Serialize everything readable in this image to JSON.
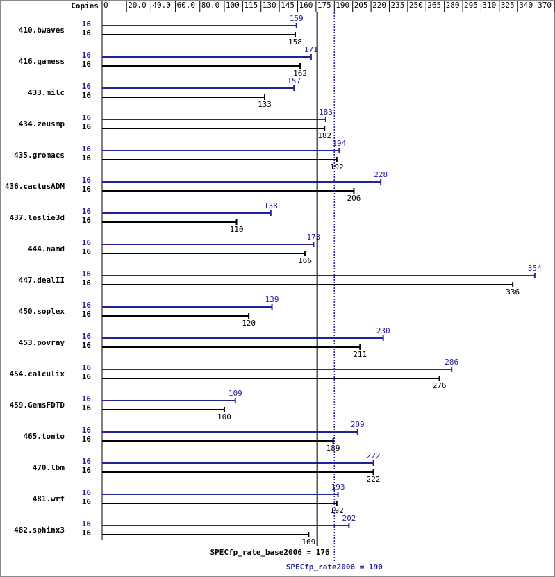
{
  "chart_data": {
    "type": "spec-bar",
    "copies_label": "Copies",
    "categories": [
      "410.bwaves",
      "416.gamess",
      "433.milc",
      "434.zeusmp",
      "435.gromacs",
      "436.cactusADM",
      "437.leslie3d",
      "444.namd",
      "447.dealII",
      "450.soplex",
      "453.povray",
      "454.calculix",
      "459.GemsFDTD",
      "465.tonto",
      "470.lbm",
      "481.wrf",
      "482.sphinx3"
    ],
    "series": [
      {
        "color": "#22229a",
        "copies": [
          16,
          16,
          16,
          16,
          16,
          16,
          16,
          16,
          16,
          16,
          16,
          16,
          16,
          16,
          16,
          16,
          16
        ],
        "values": [
          159,
          171,
          157,
          183,
          194,
          228,
          138,
          173,
          354,
          139,
          230,
          286,
          109,
          209,
          222,
          193,
          202
        ]
      },
      {
        "color": "#000000",
        "copies": [
          16,
          16,
          16,
          16,
          16,
          16,
          16,
          16,
          16,
          16,
          16,
          16,
          16,
          16,
          16,
          16,
          16
        ],
        "values": [
          158,
          162,
          133,
          182,
          192,
          206,
          110,
          166,
          336,
          120,
          211,
          276,
          100,
          189,
          222,
          192,
          169
        ]
      }
    ],
    "xlim": [
      0,
      370
    ],
    "xticks": [
      0,
      {
        "value": 20,
        "label": "20.0"
      },
      {
        "value": 40,
        "label": "40.0"
      },
      {
        "value": 60,
        "label": "60.0"
      },
      {
        "value": 80,
        "label": "80.0"
      },
      100,
      115,
      130,
      145,
      160,
      175,
      190,
      205,
      220,
      235,
      250,
      265,
      280,
      295,
      310,
      325,
      340,
      370
    ],
    "reference_lines": [
      {
        "value": 176,
        "label": "SPECfp_rate_base2006 = 176",
        "color": "#000000",
        "dashed": false
      },
      {
        "value": 190,
        "label": "SPECfp_rate2006 = 190",
        "color": "#22229a",
        "dashed": true
      }
    ]
  }
}
